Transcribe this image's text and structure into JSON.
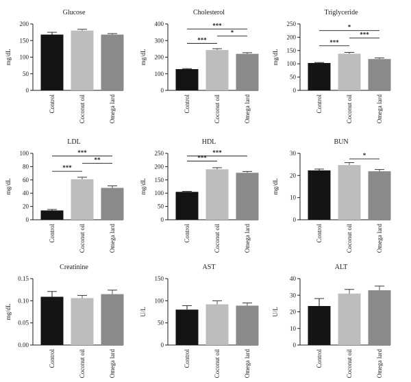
{
  "chart_data": [
    {
      "type": "bar",
      "title": "Glucose",
      "ylabel": "mg/dL",
      "categories": [
        "Control",
        "Coconut oil",
        "Omega lard"
      ],
      "values": [
        168,
        180,
        168
      ],
      "errors": [
        7,
        4,
        3
      ],
      "ylim": [
        0,
        200
      ],
      "yticks": [
        0,
        50,
        100,
        150,
        200
      ],
      "yticklabels": [
        "0",
        "50",
        "100",
        "150",
        "200"
      ],
      "colors": [
        "#141414",
        "#bdbdbd",
        "#8a8a8a"
      ],
      "significance": []
    },
    {
      "type": "bar",
      "title": "Cholesterol",
      "ylabel": "mg/dL",
      "categories": [
        "Control",
        "Coconut oil",
        "Omega lard"
      ],
      "values": [
        128,
        243,
        220
      ],
      "errors": [
        3,
        8,
        7
      ],
      "ylim": [
        0,
        400
      ],
      "yticks": [
        0,
        100,
        200,
        300,
        400
      ],
      "yticklabels": [
        "0",
        "100",
        "200",
        "300",
        "400"
      ],
      "colors": [
        "#141414",
        "#bdbdbd",
        "#8a8a8a"
      ],
      "significance": [
        {
          "from": 0,
          "to": 2,
          "level": 370,
          "label": "***"
        },
        {
          "from": 1,
          "to": 2,
          "level": 327,
          "label": "*"
        },
        {
          "from": 0,
          "to": 1,
          "level": 283,
          "label": "***"
        }
      ]
    },
    {
      "type": "bar",
      "title": "Triglyceride",
      "ylabel": "mg/dL",
      "categories": [
        "Control",
        "Coconut oil",
        "Omega lard"
      ],
      "values": [
        103,
        138,
        118
      ],
      "errors": [
        2,
        5,
        4
      ],
      "ylim": [
        0,
        250
      ],
      "yticks": [
        0,
        50,
        100,
        150,
        200,
        250
      ],
      "yticklabels": [
        "0",
        "50",
        "100",
        "150",
        "200",
        "250"
      ],
      "colors": [
        "#141414",
        "#bdbdbd",
        "#8a8a8a"
      ],
      "significance": [
        {
          "from": 0,
          "to": 2,
          "level": 225,
          "label": "*"
        },
        {
          "from": 1,
          "to": 2,
          "level": 197,
          "label": "***"
        },
        {
          "from": 0,
          "to": 1,
          "level": 168,
          "label": "***"
        }
      ]
    },
    {
      "type": "bar",
      "title": "LDL",
      "ylabel": "mg/dL",
      "categories": [
        "Control",
        "Coconut oil",
        "Omega lard"
      ],
      "values": [
        14,
        61,
        48
      ],
      "errors": [
        1.5,
        3,
        3
      ],
      "ylim": [
        0,
        100
      ],
      "yticks": [
        0,
        20,
        40,
        60,
        80,
        100
      ],
      "yticklabels": [
        "0",
        "20",
        "40",
        "60",
        "80",
        "100"
      ],
      "colors": [
        "#141414",
        "#bdbdbd",
        "#8a8a8a"
      ],
      "significance": [
        {
          "from": 0,
          "to": 2,
          "level": 96,
          "label": "***"
        },
        {
          "from": 1,
          "to": 2,
          "level": 85,
          "label": "**"
        },
        {
          "from": 0,
          "to": 1,
          "level": 73,
          "label": "***"
        }
      ]
    },
    {
      "type": "bar",
      "title": "HDL",
      "ylabel": "mg/dL",
      "categories": [
        "Control",
        "Coconut oil",
        "Omega lard"
      ],
      "values": [
        105,
        190,
        177
      ],
      "errors": [
        2,
        6,
        5
      ],
      "ylim": [
        0,
        250
      ],
      "yticks": [
        0,
        50,
        100,
        150,
        200,
        250
      ],
      "yticklabels": [
        "0",
        "50",
        "100",
        "150",
        "200",
        "250"
      ],
      "colors": [
        "#141414",
        "#bdbdbd",
        "#8a8a8a"
      ],
      "significance": [
        {
          "from": 0,
          "to": 2,
          "level": 240,
          "label": "***"
        },
        {
          "from": 0,
          "to": 1,
          "level": 221,
          "label": "***"
        }
      ]
    },
    {
      "type": "bar",
      "title": "BUN",
      "ylabel": "mg/dL",
      "categories": [
        "Control",
        "Coconut oil",
        "Omega lard"
      ],
      "values": [
        22.3,
        24.7,
        21.9
      ],
      "errors": [
        0.6,
        1.1,
        0.8
      ],
      "ylim": [
        0,
        30
      ],
      "yticks": [
        0,
        10,
        20,
        30
      ],
      "yticklabels": [
        "0",
        "10",
        "20",
        "30"
      ],
      "colors": [
        "#141414",
        "#bdbdbd",
        "#8a8a8a"
      ],
      "significance": [
        {
          "from": 1,
          "to": 2,
          "level": 27.5,
          "label": "*"
        }
      ]
    },
    {
      "type": "bar",
      "title": "Creatinine",
      "ylabel": "mg/dL",
      "categories": [
        "Control",
        "Coconut oil",
        "Omega lard"
      ],
      "values": [
        0.109,
        0.106,
        0.115
      ],
      "errors": [
        0.012,
        0.006,
        0.009
      ],
      "ylim": [
        0,
        0.15
      ],
      "yticks": [
        0,
        0.05,
        0.1,
        0.15
      ],
      "yticklabels": [
        "0.00",
        "0.05",
        "0.10",
        "0.15"
      ],
      "colors": [
        "#141414",
        "#bdbdbd",
        "#8a8a8a"
      ],
      "significance": []
    },
    {
      "type": "bar",
      "title": "AST",
      "ylabel": "U/L",
      "categories": [
        "Control",
        "Coconut oil",
        "Omega lard"
      ],
      "values": [
        80,
        92,
        89
      ],
      "errors": [
        9,
        8,
        6
      ],
      "ylim": [
        0,
        150
      ],
      "yticks": [
        0,
        50,
        100,
        150
      ],
      "yticklabels": [
        "0",
        "50",
        "100",
        "150"
      ],
      "colors": [
        "#141414",
        "#bdbdbd",
        "#8a8a8a"
      ],
      "significance": []
    },
    {
      "type": "bar",
      "title": "ALT",
      "ylabel": "U/L",
      "categories": [
        "Control",
        "Coconut oil",
        "Omega lard"
      ],
      "values": [
        23.5,
        31,
        33
      ],
      "errors": [
        4.5,
        2.5,
        2.5
      ],
      "ylim": [
        0,
        40
      ],
      "yticks": [
        0,
        10,
        20,
        30,
        40
      ],
      "yticklabels": [
        "0",
        "10",
        "20",
        "30",
        "40"
      ],
      "colors": [
        "#141414",
        "#bdbdbd",
        "#8a8a8a"
      ],
      "significance": []
    }
  ]
}
